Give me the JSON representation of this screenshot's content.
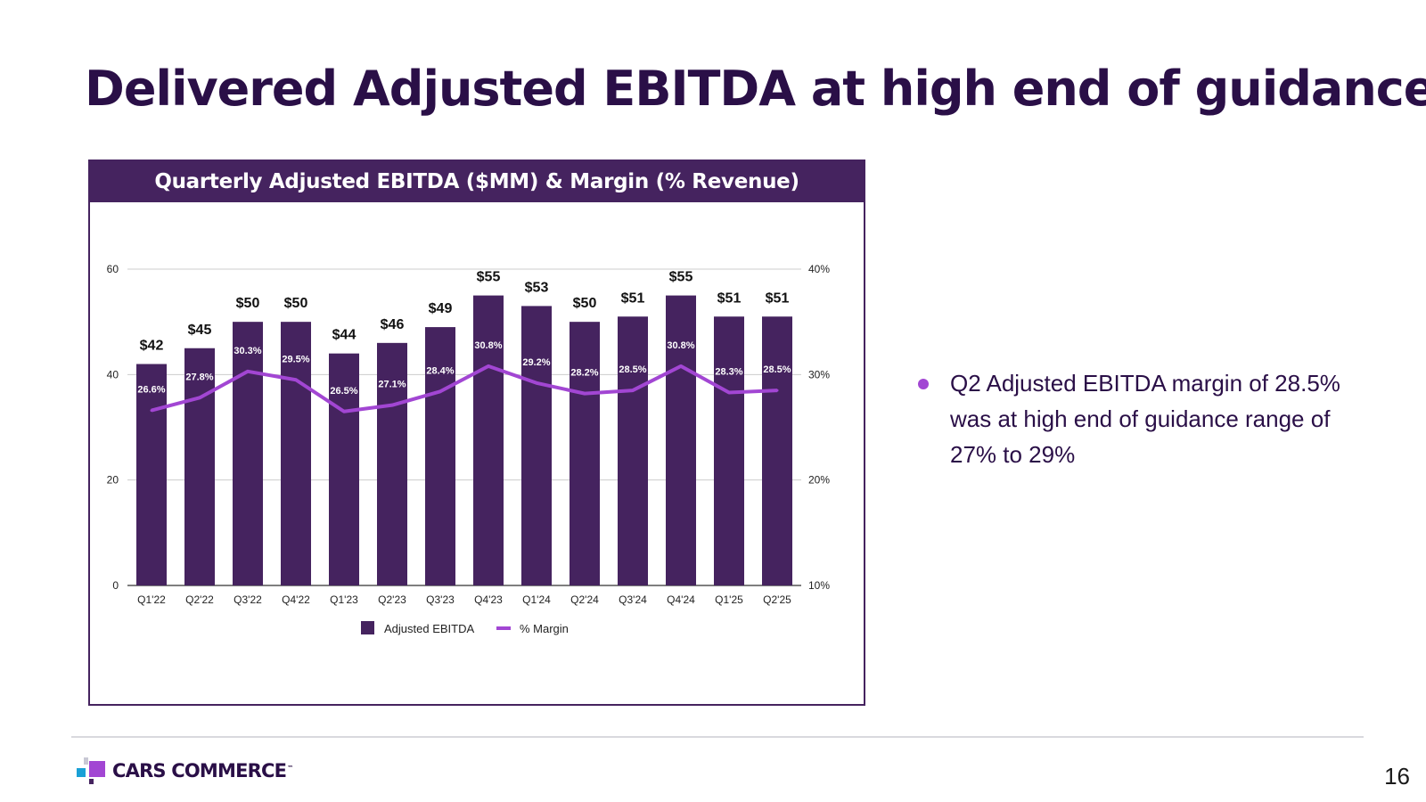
{
  "slide": {
    "title": "Delivered Adjusted EBITDA at high end of guidance",
    "page_number": "16"
  },
  "panel": {
    "header": "Quarterly Adjusted EBITDA ($MM) & Margin (% Revenue)"
  },
  "bullets": [
    "Q2 Adjusted EBITDA margin of 28.5% was at high end of guidance range of 27% to 29%"
  ],
  "logo": {
    "text": "CARS COMMERCE",
    "tm": "™"
  },
  "colors": {
    "bar": "#45235f",
    "line": "#a246d3",
    "title": "#2a0f47",
    "grid": "#cccccc"
  },
  "chart_data": {
    "type": "bar",
    "title": "Quarterly Adjusted EBITDA ($MM) & Margin (% Revenue)",
    "categories": [
      "Q1'22",
      "Q2'22",
      "Q3'22",
      "Q4'22",
      "Q1'23",
      "Q2'23",
      "Q3'23",
      "Q4'23",
      "Q1'24",
      "Q2'24",
      "Q3'24",
      "Q4'24",
      "Q1'25",
      "Q2'25"
    ],
    "series": [
      {
        "name": "Adjusted EBITDA",
        "type": "bar",
        "axis": "left",
        "values": [
          42,
          45,
          50,
          50,
          44,
          46,
          49,
          55,
          53,
          50,
          51,
          55,
          51,
          51
        ],
        "labels": [
          "$42",
          "$45",
          "$50",
          "$50",
          "$44",
          "$46",
          "$49",
          "$55",
          "$53",
          "$50",
          "$51",
          "$55",
          "$51",
          "$51"
        ]
      },
      {
        "name": "% Margin",
        "type": "line",
        "axis": "right",
        "values": [
          26.6,
          27.8,
          30.3,
          29.5,
          26.5,
          27.1,
          28.4,
          30.8,
          29.2,
          28.2,
          28.5,
          30.8,
          28.3,
          28.5
        ],
        "labels": [
          "26.6%",
          "27.8%",
          "30.3%",
          "29.5%",
          "26.5%",
          "27.1%",
          "28.4%",
          "30.8%",
          "29.2%",
          "28.2%",
          "28.5%",
          "30.8%",
          "28.3%",
          "28.5%"
        ]
      }
    ],
    "ylim": [
      0,
      60
    ],
    "yticks": [
      0,
      20,
      40,
      60
    ],
    "y2lim": [
      10,
      40
    ],
    "y2ticks": [
      "10%",
      "20%",
      "30%",
      "40%"
    ],
    "grid": true,
    "legend": [
      "Adjusted EBITDA",
      "% Margin"
    ],
    "legend_position": "bottom"
  }
}
